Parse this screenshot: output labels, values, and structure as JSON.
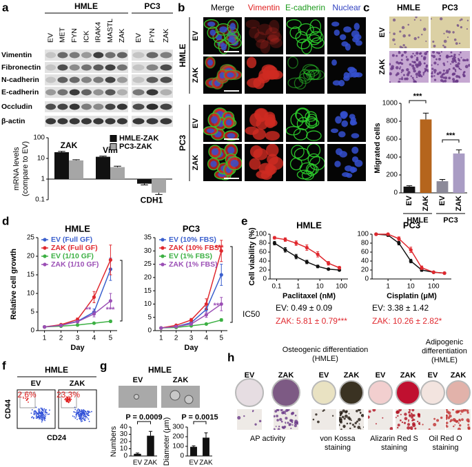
{
  "panels": {
    "a": {
      "label": "a",
      "groups": [
        "HMLE",
        "PC3"
      ],
      "lanes": [
        "EV",
        "MET",
        "FYN",
        "ICK",
        "IRAK4",
        "MASTL",
        "ZAK",
        "EV",
        "FYN",
        "ZAK"
      ],
      "rows": [
        "Vimentin",
        "Fibronectin",
        "N-cadherin",
        "E-cadherin",
        "Occludin",
        "β-actin"
      ]
    },
    "b": {
      "label": "b",
      "columns": [
        "Merge",
        "Vimentin",
        "E-cadherin",
        "Nuclear"
      ],
      "groups": [
        "HMLE",
        "PC3"
      ],
      "rows": [
        "EV",
        "ZAK",
        "EV",
        "ZAK"
      ]
    },
    "c": {
      "label": "c",
      "columns": [
        "HMLE",
        "PC3"
      ],
      "rows": [
        "EV",
        "ZAK"
      ]
    },
    "d": {
      "label": "d"
    },
    "e": {
      "label": "e",
      "ic50_label": "IC50",
      "ic50": [
        [
          "EV: 0.49 ± 0.09",
          "ZAK: 5.81 ± 0.79***"
        ],
        [
          "EV: 3.38 ± 1.42",
          "ZAK: 10.26 ± 2.82*"
        ]
      ]
    },
    "f": {
      "label": "f",
      "title": "HMLE",
      "columns": [
        "EV",
        "ZAK"
      ],
      "percentages": [
        "2.6%",
        "23.3%"
      ],
      "y_label": "CD44",
      "x_label": "CD24"
    },
    "g": {
      "label": "g",
      "title": "HMLE",
      "columns": [
        "EV",
        "ZAK"
      ]
    },
    "h": {
      "label": "h",
      "osteo_title": [
        "Osteogenic differentiation",
        "(HMLE)"
      ],
      "adipo_title": [
        "Adipogenic",
        "differentiation",
        "(HMLE)"
      ],
      "columns": [
        "EV",
        "ZAK"
      ],
      "captions": [
        [
          "AP activity"
        ],
        [
          "von Kossa",
          "staining"
        ],
        [
          "Alizarin Red S",
          "staining"
        ],
        [
          "Oil Red O",
          "staining"
        ]
      ]
    }
  },
  "chart_data": [
    {
      "type": "bar",
      "y_label": [
        "mRNA levels",
        "(compare to EV)"
      ],
      "categories": [
        "ZAK",
        "Vim",
        "CDH1"
      ],
      "series": [
        {
          "name": "HMLE-ZAK",
          "color": "#111111",
          "values": [
            20,
            12,
            0.6
          ],
          "errors": [
            2,
            1,
            0.08
          ]
        },
        {
          "name": "PC3-ZAK",
          "color": "#a6a6a6",
          "values": [
            8,
            3.8,
            0.22
          ],
          "errors": [
            0.7,
            0.4,
            0.04
          ]
        }
      ],
      "log_y": true,
      "ylim": [
        0.1,
        100
      ],
      "yticks": [
        0.1,
        1,
        10,
        100
      ]
    },
    {
      "type": "bar",
      "y_label": "Migrated cells",
      "categories": [
        "EV",
        "ZAK",
        "EV",
        "ZAK"
      ],
      "groups": [
        "HMLE",
        "PC3"
      ],
      "values": [
        70,
        820,
        130,
        440
      ],
      "errors": [
        10,
        70,
        20,
        40
      ],
      "colors": [
        "#111111",
        "#b5651d",
        "#8c8a99",
        "#a99cc4"
      ],
      "ylim": [
        0,
        1000
      ],
      "yticks": [
        0,
        200,
        400,
        600,
        800,
        1000
      ],
      "annotations": [
        "***",
        "***"
      ]
    },
    {
      "type": "line",
      "title": "HMLE",
      "y_label": "Relative cell growth",
      "x_label": "Day",
      "x": [
        1,
        2,
        3,
        4,
        5
      ],
      "xlim": [
        0.6,
        5.4
      ],
      "xticks": [
        1,
        2,
        3,
        4,
        5
      ],
      "ylim": [
        0,
        25
      ],
      "yticks": [
        0,
        5,
        10,
        15,
        20,
        25
      ],
      "series": [
        {
          "name": "EV (Full GF)",
          "color": "#3a5fcd",
          "values": [
            1,
            1.5,
            2.5,
            5,
            16.5
          ],
          "errors": [
            0.05,
            0.1,
            0.3,
            0.8,
            3
          ]
        },
        {
          "name": "ZAK (Full GF)",
          "color": "#e0282e",
          "values": [
            1,
            1.6,
            3,
            9,
            19
          ],
          "errors": [
            0.05,
            0.2,
            0.4,
            1.5,
            4
          ]
        },
        {
          "name": "EV (1/10 GF)",
          "color": "#3cb043",
          "values": [
            1,
            1.2,
            1.5,
            2,
            2.5
          ],
          "errors": [
            0.05,
            0.1,
            0.1,
            0.2,
            0.3
          ]
        },
        {
          "name": "ZAK (1/10 GF)",
          "color": "#9b4fb5",
          "values": [
            1,
            1.4,
            2.4,
            4.5,
            8
          ],
          "errors": [
            0.05,
            0.2,
            0.3,
            0.8,
            2
          ]
        }
      ],
      "annotations": [
        "**",
        "***"
      ]
    },
    {
      "type": "line",
      "title": "PC3",
      "x_label": "Day",
      "x": [
        1,
        2,
        3,
        4,
        5
      ],
      "xlim": [
        0.6,
        5.4
      ],
      "xticks": [
        1,
        2,
        3,
        4,
        5
      ],
      "ylim": [
        0,
        35
      ],
      "yticks": [
        0,
        5,
        10,
        15,
        20,
        25,
        30,
        35
      ],
      "series": [
        {
          "name": "EV (10% FBS)",
          "color": "#3a5fcd",
          "values": [
            1,
            1.5,
            3,
            8,
            21
          ],
          "errors": [
            0.05,
            0.2,
            0.4,
            1,
            4
          ]
        },
        {
          "name": "ZAK (10% FBS)",
          "color": "#e0282e",
          "values": [
            1,
            2,
            4,
            10,
            30
          ],
          "errors": [
            0.05,
            0.3,
            0.6,
            2,
            4
          ]
        },
        {
          "name": "EV (1% FBS)",
          "color": "#3cb043",
          "values": [
            1,
            1.2,
            1.8,
            2.5,
            4
          ],
          "errors": [
            0.05,
            0.1,
            0.2,
            0.3,
            0.5
          ]
        },
        {
          "name": "ZAK (1% FBS)",
          "color": "#9b4fb5",
          "values": [
            1,
            1.5,
            2.5,
            6,
            10
          ],
          "errors": [
            0.05,
            0.2,
            0.4,
            1,
            2.5
          ]
        }
      ],
      "annotations": [
        "***",
        "***"
      ]
    },
    {
      "type": "line",
      "title": "HMLE",
      "y_label": "Cell viability (%)",
      "x_label": "Paclitaxel (nM)",
      "log_x": true,
      "x": [
        0.08,
        0.25,
        0.8,
        2.5,
        8,
        25,
        80
      ],
      "xlim": [
        0.05,
        200
      ],
      "xticks": [
        0.1,
        1,
        10,
        100
      ],
      "ylim": [
        0,
        100
      ],
      "yticks": [
        0,
        20,
        40,
        60,
        80,
        100
      ],
      "series": [
        {
          "color": "#111111",
          "values": [
            80,
            65,
            50,
            38,
            28,
            22,
            20
          ],
          "errors": [
            4,
            5,
            5,
            4,
            3,
            2,
            2
          ]
        },
        {
          "color": "#e0282e",
          "values": [
            92,
            88,
            80,
            70,
            55,
            35,
            25
          ],
          "errors": [
            3,
            4,
            5,
            6,
            6,
            4,
            3
          ]
        }
      ]
    },
    {
      "type": "line",
      "title": "PC3",
      "x_label": "Cisplatin (μM)",
      "log_x": true,
      "x": [
        0.3,
        1,
        3,
        10,
        30,
        100,
        300
      ],
      "xlim": [
        0.2,
        600
      ],
      "xticks": [
        1,
        10,
        100
      ],
      "ylim": [
        0,
        100
      ],
      "yticks": [
        0,
        20,
        40,
        60,
        80,
        100
      ],
      "series": [
        {
          "color": "#111111",
          "values": [
            100,
            98,
            80,
            40,
            20,
            15,
            13
          ],
          "errors": [
            2,
            3,
            4,
            4,
            3,
            2,
            2
          ]
        },
        {
          "color": "#e0282e",
          "values": [
            100,
            100,
            90,
            65,
            25,
            15,
            13
          ],
          "errors": [
            2,
            2,
            4,
            6,
            4,
            2,
            2
          ]
        }
      ]
    },
    {
      "type": "bar",
      "y_label": "Numbers",
      "categories": [
        "EV",
        "ZAK"
      ],
      "values": [
        3,
        28
      ],
      "errors": [
        1,
        6
      ],
      "color": "#111111",
      "ylim": [
        0,
        40
      ],
      "yticks": [
        0,
        10,
        20,
        30,
        40
      ],
      "annotations": [
        "P = 0.0009"
      ]
    },
    {
      "type": "bar",
      "y_label": "Diameter (μm)",
      "categories": [
        "EV",
        "ZAK"
      ],
      "values": [
        95,
        190
      ],
      "errors": [
        10,
        50
      ],
      "color": "#111111",
      "ylim": [
        0,
        300
      ],
      "yticks": [
        0,
        100,
        200,
        300
      ],
      "annotations": [
        "P = 0.0015"
      ]
    }
  ]
}
